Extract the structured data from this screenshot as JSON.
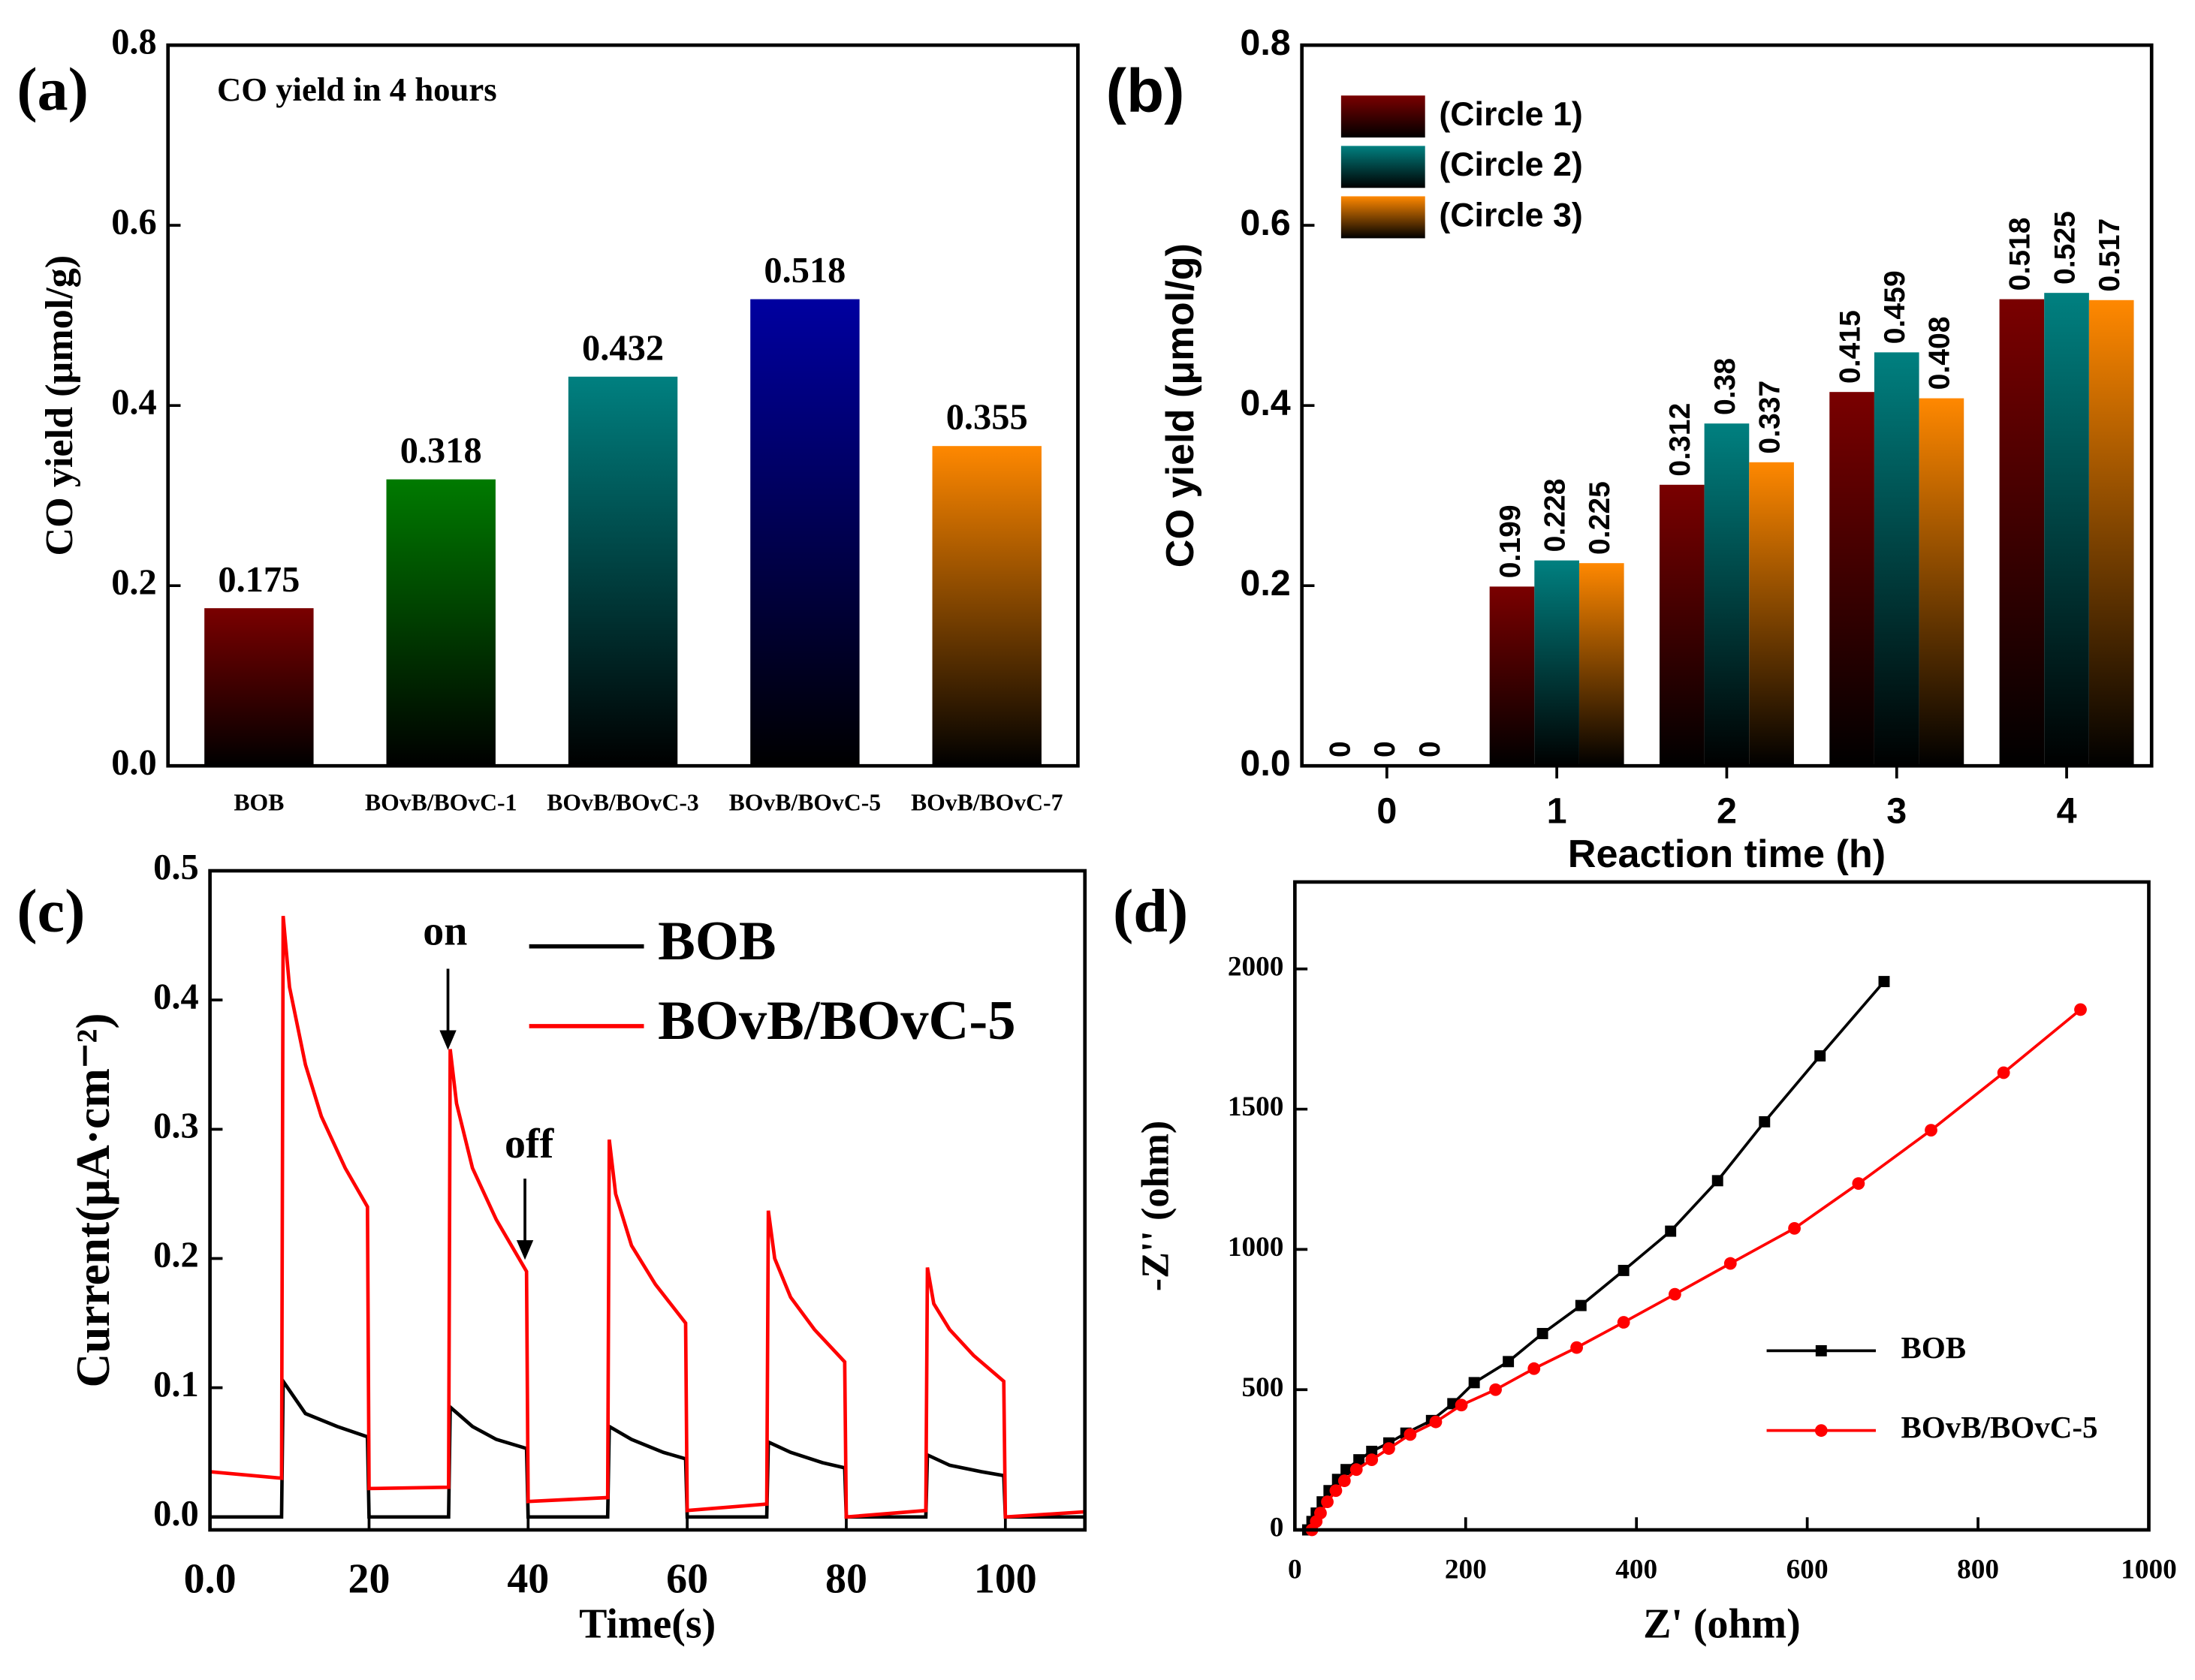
{
  "chart_data": [
    {
      "type": "bar",
      "panel": "(a)",
      "annotation": "CO yield in 4 hours",
      "ylabel": "CO yield (μmol/g)",
      "categories": [
        "BOB",
        "BOvB/BOvC-1",
        "BOvB/BOvC-3",
        "BOvB/BOvC-5",
        "BOvB/BOvC-7"
      ],
      "values": [
        0.175,
        0.318,
        0.432,
        0.518,
        0.355
      ],
      "colors": [
        "#7a0000",
        "#007a00",
        "#008080",
        "#0000a0",
        "#ff8800"
      ],
      "ylim": [
        0,
        0.8
      ],
      "yticks": [
        {
          "value": 0,
          "label": "0.0"
        },
        0.2,
        0.4,
        0.6,
        0.8
      ]
    },
    {
      "type": "bar",
      "panel": "(b)",
      "xlabel": "Reaction time (h)",
      "ylabel": "CO yield (μmol/g)",
      "categories": [
        0,
        1,
        2,
        3,
        4
      ],
      "series": [
        {
          "name": "(Circle 1)",
          "color": "#7a0000",
          "values": [
            0,
            0.199,
            0.312,
            0.415,
            0.518
          ]
        },
        {
          "name": "(Circle 2)",
          "color": "#008080",
          "values": [
            0,
            0.228,
            0.38,
            0.459,
            0.525
          ]
        },
        {
          "name": "(Circle 3)",
          "color": "#ff8800",
          "values": [
            0,
            0.225,
            0.337,
            0.408,
            0.517
          ]
        }
      ],
      "ylim": [
        0,
        0.8
      ],
      "yticks": [
        {
          "value": 0,
          "label": "0.0"
        },
        0.2,
        0.4,
        0.6,
        0.8
      ],
      "legend": "upper left"
    },
    {
      "type": "line",
      "panel": "(c)",
      "xlabel": "Time(s)",
      "ylabel": "Current(μA·cm⁻²)",
      "annotations": [
        "on",
        "off"
      ],
      "series": [
        {
          "name": "BOB",
          "color": "#000000",
          "x": [
            0,
            9,
            9.2,
            12,
            16,
            19.8,
            20,
            30,
            30.2,
            33,
            36,
            39.8,
            40,
            50,
            50.2,
            53,
            57,
            59.8,
            60,
            70,
            70.2,
            73,
            77,
            79.8,
            80,
            90,
            90.2,
            93,
            97,
            99.8,
            100,
            110
          ],
          "values": [
            0,
            0,
            0.105,
            0.08,
            0.07,
            0.062,
            0,
            0,
            0.085,
            0.07,
            0.06,
            0.053,
            0,
            0,
            0.07,
            0.06,
            0.05,
            0.045,
            0,
            0,
            0.058,
            0.05,
            0.042,
            0.038,
            0,
            0,
            0.048,
            0.04,
            0.035,
            0.032,
            0,
            0
          ]
        },
        {
          "name": "BOvB/BOvC-5",
          "color": "#ff0000",
          "x": [
            0,
            9,
            9.2,
            10,
            12,
            14,
            17,
            19.8,
            20,
            30,
            30.2,
            31,
            33,
            36,
            39.8,
            40,
            50,
            50.2,
            51,
            53,
            56,
            59.8,
            60,
            70,
            70.2,
            71,
            73,
            76,
            79.8,
            80,
            90,
            90.2,
            91,
            93,
            96,
            99.8,
            100,
            110
          ],
          "values": [
            0.035,
            0.03,
            0.465,
            0.41,
            0.35,
            0.31,
            0.27,
            0.24,
            0.022,
            0.023,
            0.362,
            0.32,
            0.27,
            0.23,
            0.19,
            0.012,
            0.015,
            0.292,
            0.25,
            0.21,
            0.18,
            0.15,
            0.005,
            0.01,
            0.237,
            0.2,
            0.17,
            0.145,
            0.12,
            0,
            0.005,
            0.193,
            0.165,
            0.145,
            0.125,
            0.105,
            0,
            0.004
          ]
        }
      ],
      "xlim": [
        0,
        110
      ],
      "xticks": [
        {
          "value": 0,
          "label": "0.0"
        },
        20,
        40,
        60,
        80,
        100
      ],
      "ylim": [
        -0.01,
        0.5
      ],
      "yticks": [
        {
          "value": 0,
          "label": "0.0"
        },
        0.1,
        0.2,
        0.3,
        0.4,
        0.5
      ],
      "legend": "upper right"
    },
    {
      "type": "line",
      "panel": "(d)",
      "xlabel": "Z' (ohm)",
      "ylabel": "-Z'' (ohm)",
      "series": [
        {
          "name": "BOB",
          "color": "#000000",
          "marker": "square",
          "x": [
            15,
            20,
            25,
            32,
            40,
            50,
            60,
            75,
            90,
            110,
            130,
            160,
            185,
            210,
            250,
            290,
            335,
            385,
            440,
            495,
            550,
            615,
            690
          ],
          "values": [
            0,
            30,
            60,
            100,
            140,
            180,
            215,
            250,
            280,
            310,
            345,
            390,
            450,
            525,
            600,
            700,
            800,
            925,
            1065,
            1245,
            1455,
            1690,
            1955
          ]
        },
        {
          "name": "BOvB/BOvC-5",
          "color": "#ff0000",
          "marker": "circle",
          "x": [
            20,
            25,
            30,
            38,
            48,
            58,
            72,
            90,
            110,
            135,
            165,
            195,
            235,
            280,
            330,
            385,
            445,
            510,
            585,
            660,
            745,
            830,
            920
          ],
          "values": [
            0,
            30,
            60,
            100,
            140,
            175,
            215,
            250,
            290,
            340,
            385,
            445,
            500,
            575,
            650,
            740,
            840,
            950,
            1075,
            1235,
            1425,
            1630,
            1855
          ]
        }
      ],
      "xlim": [
        0,
        1000
      ],
      "xticks": [
        0,
        200,
        400,
        600,
        800,
        1000
      ],
      "ylim": [
        0,
        2310
      ],
      "yticks": [
        0,
        500,
        1000,
        1500,
        2000
      ],
      "legend": "lower right"
    }
  ]
}
